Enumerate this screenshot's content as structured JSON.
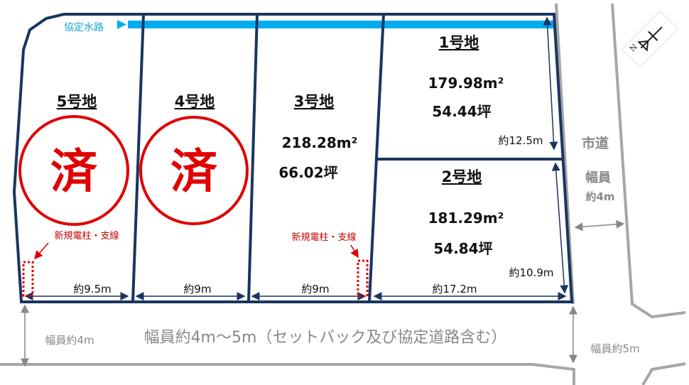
{
  "colors": {
    "boundary": "#1a3560",
    "water_channel": "#00aeef",
    "sold_stamp": "#e00000",
    "utility_note": "#c00000",
    "road": "#a6a6a6"
  },
  "water_channel": {
    "label": "協定水路",
    "icon": "arrow-right-icon"
  },
  "lots": [
    {
      "label": "1号地",
      "area_m2": "179.98m²",
      "area_tsubo": "54.44坪",
      "status": "available"
    },
    {
      "label": "2号地",
      "area_m2": "181.29m²",
      "area_tsubo": "54.84坪",
      "status": "available"
    },
    {
      "label": "3号地",
      "area_m2": "218.28m²",
      "area_tsubo": "66.02坪",
      "status": "available"
    },
    {
      "label": "4号地",
      "status": "sold",
      "stamp": "済"
    },
    {
      "label": "5号地",
      "status": "sold",
      "stamp": "済"
    }
  ],
  "dimensions": {
    "lot5_frontage": "約9.5m",
    "lot4_frontage": "約9m",
    "lot3_frontage": "約9m",
    "lot2_frontage": "約17.2m",
    "lot1_depth": "約12.5m",
    "lot2_depth": "約10.9m"
  },
  "utility_notes": [
    "新規電柱・支線",
    "新規電柱・支線"
  ],
  "roads": {
    "city_road_label": "市道",
    "city_road_width_label": "幅員",
    "city_road_width": "約4m",
    "front_road_description": "幅員約4m〜5m（セットバック及び協定道路含む）",
    "front_road_left_width": "幅員約4m",
    "front_road_right_width": "幅員約5m"
  },
  "compass": {
    "label": "N",
    "icon": "north-arrow-icon"
  }
}
